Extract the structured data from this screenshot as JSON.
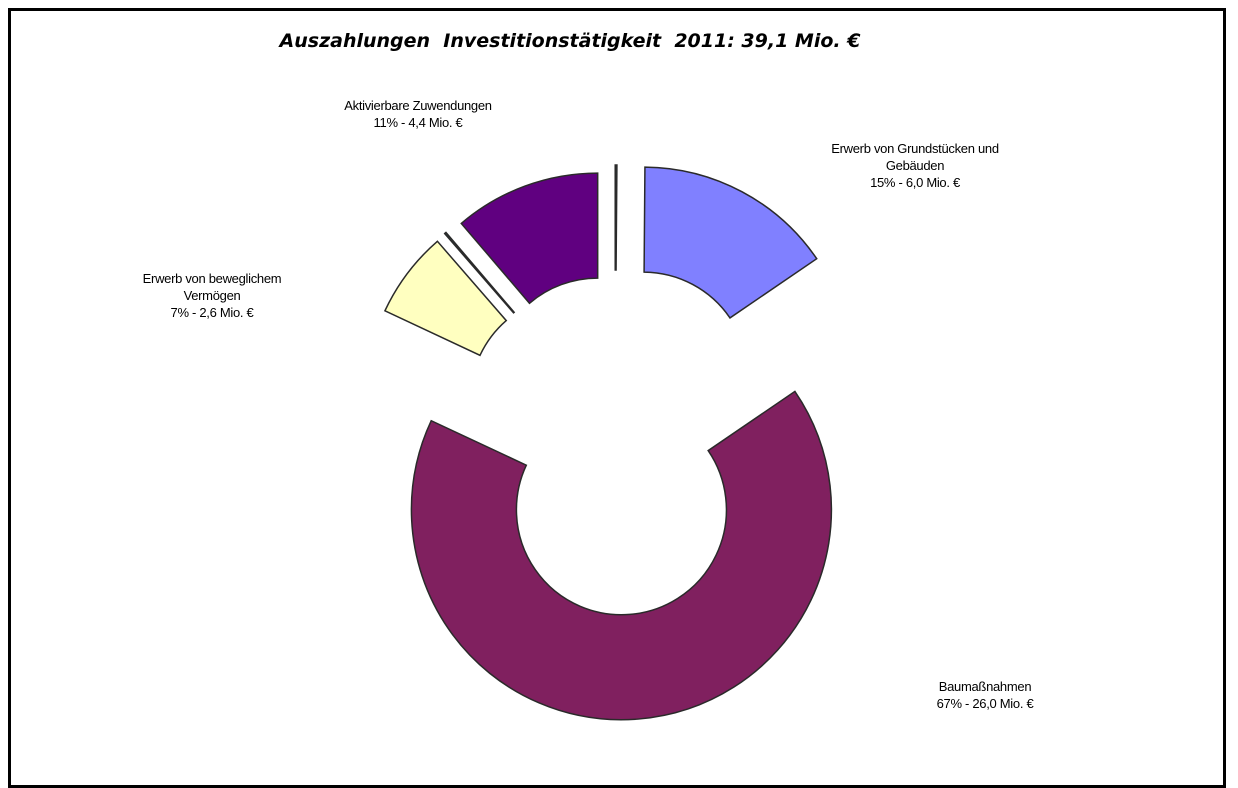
{
  "chart_data": {
    "type": "donut",
    "title": "Auszahlungen  Investitionstätigkeit  2011: 39,1 Mio. €",
    "categories": [
      null,
      "Erwerb von Grundstücken und Gebäuden",
      "Baumaßnahmen",
      "Erwerb von beweglichem Vermögen",
      null,
      "Aktivierbare Zuwendungen"
    ],
    "values": [
      0.05,
      6.0,
      26.0,
      2.6,
      0.05,
      4.4
    ],
    "value_labels": [
      null,
      "15% - 6,0 Mio. €",
      "67% - 26,0 Mio. €",
      "7% - 2,6 Mio. €",
      null,
      "11% - 4,4 Mio. €"
    ],
    "colors": [
      "#2f4f4f",
      "#8080ff",
      "#80205f",
      "#ffffc0",
      "#2f4f4f",
      "#600080"
    ]
  }
}
